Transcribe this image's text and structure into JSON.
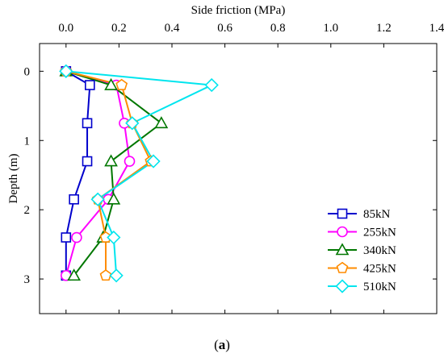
{
  "chart_data": {
    "type": "line",
    "xlabel": "Side friction (MPa)",
    "ylabel": "Depth (m)",
    "xlim": [
      -0.1,
      1.4
    ],
    "ylim": [
      -0.4,
      3.5
    ],
    "x_ticks": [
      "0.0",
      "0.2",
      "0.4",
      "0.6",
      "0.8",
      "1.0",
      "1.2",
      "1.4"
    ],
    "x_tick_values": [
      0.0,
      0.2,
      0.4,
      0.6,
      0.8,
      1.0,
      1.2,
      1.4
    ],
    "y_ticks": [
      "0",
      "1",
      "2",
      "3"
    ],
    "y_tick_values": [
      0,
      1,
      2,
      3
    ],
    "x_axis_position": "top",
    "y_axis_inverted": true,
    "grid": false,
    "legend_position": "bottom-right",
    "series": [
      {
        "name": "85kN",
        "color": "#0000cc",
        "marker": "square",
        "points": [
          [
            0.0,
            0.0
          ],
          [
            0.09,
            0.2
          ],
          [
            0.08,
            0.75
          ],
          [
            0.08,
            1.3
          ],
          [
            0.03,
            1.85
          ],
          [
            0.0,
            2.4
          ],
          [
            0.0,
            2.95
          ]
        ]
      },
      {
        "name": "255kN",
        "color": "#ff00ff",
        "marker": "circle",
        "points": [
          [
            0.0,
            0.0
          ],
          [
            0.19,
            0.2
          ],
          [
            0.22,
            0.75
          ],
          [
            0.24,
            1.3
          ],
          [
            0.16,
            1.85
          ],
          [
            0.04,
            2.4
          ],
          [
            0.0,
            2.95
          ]
        ]
      },
      {
        "name": "340kN",
        "color": "#007700",
        "marker": "triangle",
        "points": [
          [
            0.0,
            0.0
          ],
          [
            0.17,
            0.2
          ],
          [
            0.36,
            0.75
          ],
          [
            0.17,
            1.3
          ],
          [
            0.18,
            1.85
          ],
          [
            0.14,
            2.4
          ],
          [
            0.03,
            2.95
          ]
        ]
      },
      {
        "name": "425kN",
        "color": "#ff8c00",
        "marker": "pentagon",
        "points": [
          [
            0.0,
            0.0
          ],
          [
            0.21,
            0.2
          ],
          [
            0.25,
            0.75
          ],
          [
            0.32,
            1.3
          ],
          [
            0.12,
            1.85
          ],
          [
            0.15,
            2.4
          ],
          [
            0.15,
            2.95
          ]
        ]
      },
      {
        "name": "510kN",
        "color": "#00e5ee",
        "marker": "diamond",
        "points": [
          [
            0.0,
            0.0
          ],
          [
            0.55,
            0.2
          ],
          [
            0.25,
            0.75
          ],
          [
            0.33,
            1.3
          ],
          [
            0.12,
            1.85
          ],
          [
            0.18,
            2.4
          ],
          [
            0.19,
            2.95
          ]
        ]
      }
    ]
  },
  "caption": {
    "open": "(",
    "letter": "a",
    "close": ")"
  }
}
